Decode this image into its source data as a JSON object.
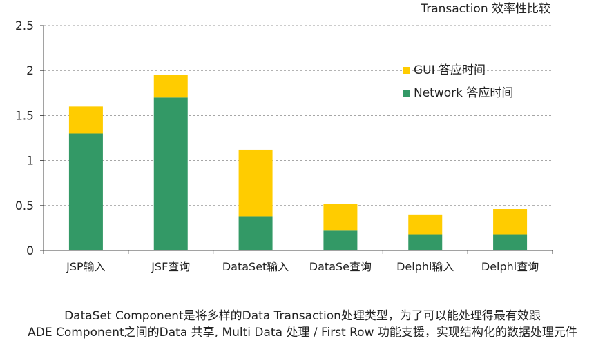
{
  "chart_data": {
    "type": "bar",
    "stacked": true,
    "title": "Transaction 效率性比较",
    "categories": [
      "JSP输入",
      "JSF查询",
      "DataSet输入",
      "DataSe查询",
      "Delphi输入",
      "Delphi查询"
    ],
    "series": [
      {
        "name": "Network 答应时间",
        "values": [
          1.3,
          1.7,
          0.38,
          0.22,
          0.18,
          0.18
        ],
        "color": "#339966"
      },
      {
        "name": "GUI 答应时间",
        "values": [
          0.3,
          0.25,
          0.74,
          0.3,
          0.22,
          0.28
        ],
        "color": "#ffcc00"
      }
    ],
    "ylim": [
      0,
      2.5
    ],
    "yticks": [
      "0",
      "0.5",
      "1",
      "1.5",
      "2",
      "2.5"
    ],
    "grid": true,
    "legend_position": "top-right"
  },
  "caption": {
    "line1": "DataSet Component是将多样的Data Transaction处理类型，为了可以能处理得最有效跟",
    "line2": "ADE Component之间的Data 共享, Multi Data 处理 / First Row 功能支援，实现结构化的数据处理元件"
  }
}
